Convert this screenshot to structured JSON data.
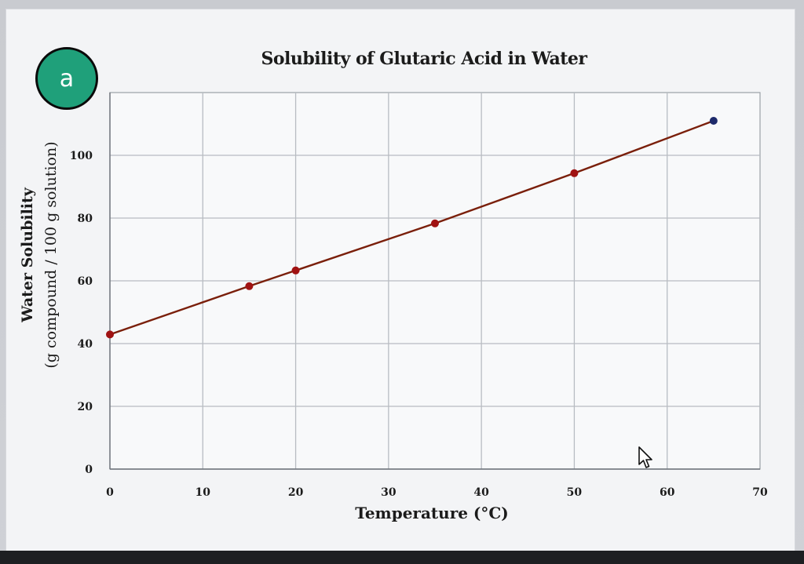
{
  "badge": {
    "label": "a"
  },
  "chart_data": {
    "type": "line",
    "title": "Solubility of Glutaric Acid in Water",
    "xlabel": "Temperature (°C)",
    "ylabel_line1": "Water Solubility",
    "ylabel_line2": "(g compound / 100 g solution)",
    "xlim": [
      0,
      70
    ],
    "ylim": [
      0,
      120
    ],
    "x_ticks": [
      0,
      10,
      20,
      30,
      40,
      50,
      60,
      70
    ],
    "y_ticks": [
      0,
      20,
      40,
      60,
      80,
      100
    ],
    "grid": true,
    "series": [
      {
        "x": [
          0,
          15,
          20,
          35,
          50,
          65
        ],
        "y": [
          42.9,
          58.3,
          63.3,
          78.3,
          94.3,
          111.0
        ]
      }
    ],
    "colors": {
      "line": "#7a1f0a",
      "point": "#a01212",
      "grid": "#b8bcc2"
    }
  }
}
